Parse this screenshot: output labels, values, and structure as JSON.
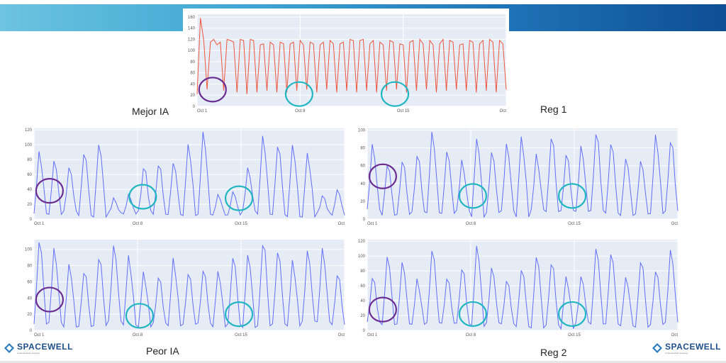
{
  "labels": {
    "best": "Mejor IA",
    "reg1": "Reg 1",
    "worst": "Peor IA",
    "reg2": "Reg 2"
  },
  "logo": {
    "left_text": "SPACEWELL",
    "right_text": "SPACEWELL",
    "subtitle": "a Nemetschek company"
  },
  "colors": {
    "banner_start": "#6cc4e0",
    "banner_end": "#0e4e95",
    "red_series": "#ef553b",
    "blue_series": "#636efa",
    "plot_bg": "#e5ecf6",
    "purple_circle": "#6a2c91",
    "teal_circle": "#1fb6c1"
  },
  "chart_data": [
    {
      "id": "top",
      "type": "line",
      "series_color": "#ef553b",
      "x_ticks": [
        "Oct 1",
        "Oct 8",
        "Oct 15",
        "Oct"
      ],
      "y_ticks": [
        0,
        20,
        40,
        60,
        80,
        100,
        120,
        140,
        160
      ],
      "ylim": [
        0,
        165
      ],
      "days": 21,
      "values": [
        22,
        158,
        118,
        30,
        115,
        120,
        110,
        115,
        28,
        120,
        118,
        115,
        25,
        120,
        118,
        22,
        120,
        118,
        25,
        110,
        112,
        28,
        115,
        110,
        25,
        115,
        112,
        25,
        112,
        115,
        28,
        118,
        110,
        30,
        115,
        112,
        25,
        110,
        115,
        30,
        118,
        112,
        25,
        112,
        115,
        28,
        120,
        118,
        25,
        118,
        120,
        28,
        112,
        118,
        25,
        115,
        110,
        28,
        118,
        115,
        30,
        112,
        110,
        25,
        115,
        118,
        28,
        120,
        112,
        30,
        118,
        110,
        25,
        112,
        120,
        28,
        118,
        115,
        30,
        110,
        112,
        28,
        118,
        115,
        25,
        112,
        118,
        28,
        120,
        115,
        25,
        118,
        112,
        30
      ],
      "annotations": [
        {
          "type": "circle",
          "color": "#6a2c91",
          "near": "Oct 1"
        },
        {
          "type": "circle",
          "color": "#1fb6c1",
          "near": "Oct 8"
        },
        {
          "type": "circle",
          "color": "#1fb6c1",
          "near": "Oct 15"
        }
      ]
    },
    {
      "id": "best",
      "type": "line",
      "series_color": "#636efa",
      "x_ticks": [
        "Oct 1",
        "Oct 8",
        "Oct 15",
        "Oct"
      ],
      "y_ticks": [
        0,
        20,
        40,
        60,
        80,
        100,
        120
      ],
      "ylim": [
        0,
        122
      ],
      "days": 21,
      "annotations": [
        {
          "type": "circle",
          "color": "#6a2c91",
          "near": "Oct 1"
        },
        {
          "type": "circle",
          "color": "#1fb6c1",
          "near": "Oct 8"
        },
        {
          "type": "circle",
          "color": "#1fb6c1",
          "near": "Oct 15"
        }
      ]
    },
    {
      "id": "reg1",
      "type": "line",
      "series_color": "#636efa",
      "x_ticks": [
        "Oct 1",
        "Oct 8",
        "Oct 15",
        "Oct"
      ],
      "y_ticks": [
        0,
        20,
        40,
        60,
        80,
        100
      ],
      "ylim": [
        0,
        102
      ],
      "days": 21,
      "annotations": [
        {
          "type": "circle",
          "color": "#6a2c91",
          "near": "Oct 1"
        },
        {
          "type": "circle",
          "color": "#1fb6c1",
          "near": "Oct 8"
        },
        {
          "type": "circle",
          "color": "#1fb6c1",
          "near": "Oct 15"
        }
      ]
    },
    {
      "id": "worst",
      "type": "line",
      "series_color": "#636efa",
      "x_ticks": [
        "Oct 1",
        "Oct 8",
        "Oct 15",
        "Oct"
      ],
      "y_ticks": [
        0,
        20,
        40,
        60,
        80,
        100
      ],
      "ylim": [
        0,
        112
      ],
      "days": 21,
      "annotations": [
        {
          "type": "circle",
          "color": "#6a2c91",
          "near": "Oct 1"
        },
        {
          "type": "circle",
          "color": "#1fb6c1",
          "near": "Oct 8"
        },
        {
          "type": "circle",
          "color": "#1fb6c1",
          "near": "Oct 15"
        }
      ]
    },
    {
      "id": "reg2",
      "type": "line",
      "series_color": "#636efa",
      "x_ticks": [
        "Oct 1",
        "Oct 8",
        "Oct 15",
        "Oct"
      ],
      "y_ticks": [
        0,
        20,
        40,
        60,
        80,
        100,
        120
      ],
      "ylim": [
        0,
        122
      ],
      "days": 21,
      "annotations": [
        {
          "type": "circle",
          "color": "#6a2c91",
          "near": "Oct 1"
        },
        {
          "type": "circle",
          "color": "#1fb6c1",
          "near": "Oct 8"
        },
        {
          "type": "circle",
          "color": "#1fb6c1",
          "near": "Oct 15"
        }
      ]
    }
  ]
}
